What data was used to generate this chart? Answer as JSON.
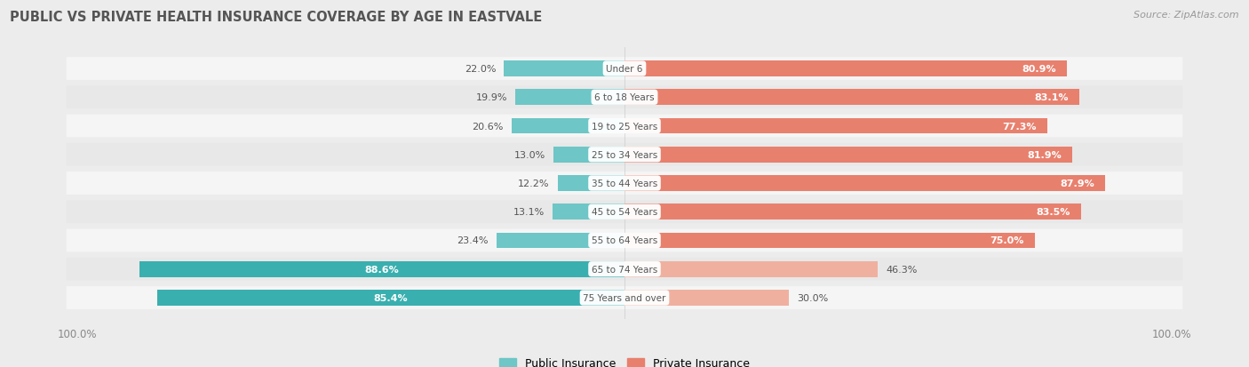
{
  "title": "PUBLIC VS PRIVATE HEALTH INSURANCE COVERAGE BY AGE IN EASTVALE",
  "source": "Source: ZipAtlas.com",
  "categories": [
    "Under 6",
    "6 to 18 Years",
    "19 to 25 Years",
    "25 to 34 Years",
    "35 to 44 Years",
    "45 to 54 Years",
    "55 to 64 Years",
    "65 to 74 Years",
    "75 Years and over"
  ],
  "public_values": [
    22.0,
    19.9,
    20.6,
    13.0,
    12.2,
    13.1,
    23.4,
    88.6,
    85.4
  ],
  "private_values": [
    80.9,
    83.1,
    77.3,
    81.9,
    87.9,
    83.5,
    75.0,
    46.3,
    30.0
  ],
  "public_color_normal": "#6ec6c6",
  "public_color_dark": "#3aafaf",
  "private_color_normal": "#e8806e",
  "private_color_light": "#f0b0a0",
  "bg_color": "#ececec",
  "row_color_light": "#f5f5f5",
  "row_color_dark": "#e8e8e8",
  "title_color": "#555555",
  "source_color": "#999999",
  "label_dark": "#555555",
  "label_white": "#ffffff",
  "max_value": 100.0,
  "bar_height": 0.55,
  "legend_labels": [
    "Public Insurance",
    "Private Insurance"
  ]
}
